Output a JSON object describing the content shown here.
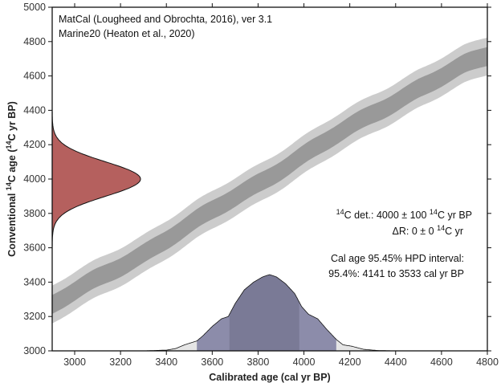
{
  "chart_data": {
    "type": "area",
    "title": "",
    "xlabel": "Calibrated age (cal yr BP)",
    "ylabel": "Conventional 14C age (14C yr BP)",
    "xlim": [
      2900,
      4800
    ],
    "ylim": [
      3000,
      5000
    ],
    "xticks": [
      3000,
      3200,
      3400,
      3600,
      3800,
      4000,
      4200,
      4400,
      4600,
      4800
    ],
    "yticks": [
      3000,
      3200,
      3400,
      3600,
      3800,
      4000,
      4200,
      4400,
      4600,
      4800,
      5000
    ],
    "annotations": {
      "header_line1": "MatCal (Lougheed and Obrochta, 2016), ver 3.1",
      "header_line2": "Marine20 (Heaton et al., 2020)",
      "det_prefix": "14",
      "det_text": "C det.: 4000 ± 100 ",
      "det_sup2": "14",
      "det_suffix": "C yr BP",
      "dr_text": "ΔR: 0 ± 0 ",
      "dr_sup": "14",
      "dr_suffix": "C yr",
      "hpd_title": "Cal age 95.45% HPD interval:",
      "hpd_range": "95.4%: 4141 to 3533 cal yr BP"
    },
    "calibration_curve": {
      "name": "Marine20",
      "x": [
        2900,
        3100,
        3300,
        3500,
        3700,
        3900,
        4100,
        4300,
        4500,
        4700,
        4800
      ],
      "mean": [
        3264,
        3420,
        3570,
        3730,
        3895,
        4060,
        4220,
        4380,
        4530,
        4660,
        4713
      ],
      "sigma1": 55,
      "sigma2": 110
    },
    "radiocarbon_pdf": {
      "mean": 4000,
      "sd": 100,
      "color": "#b5605e"
    },
    "calendar_pdf": {
      "x": [
        3300,
        3400,
        3440,
        3480,
        3533,
        3560,
        3600,
        3640,
        3670,
        3700,
        3740,
        3780,
        3820,
        3850,
        3880,
        3920,
        3960,
        3990,
        4020,
        4060,
        4100,
        4141,
        4170,
        4210,
        4260,
        4320,
        4400
      ],
      "rel_density": [
        0.0,
        0.01,
        0.03,
        0.08,
        0.13,
        0.2,
        0.32,
        0.42,
        0.45,
        0.62,
        0.8,
        0.9,
        0.97,
        1.0,
        0.97,
        0.88,
        0.75,
        0.58,
        0.48,
        0.42,
        0.28,
        0.15,
        0.08,
        0.06,
        0.02,
        0.005,
        0.0
      ],
      "hpd_95": [
        3533,
        4141
      ],
      "hpd_68": [
        3675,
        3980
      ],
      "color_95": "#8c8caa",
      "color_68": "#7a7a96",
      "color_tail": "#e5e5e5"
    },
    "band_colors": {
      "sigma2": "#cccccc",
      "sigma1": "#999999"
    }
  }
}
